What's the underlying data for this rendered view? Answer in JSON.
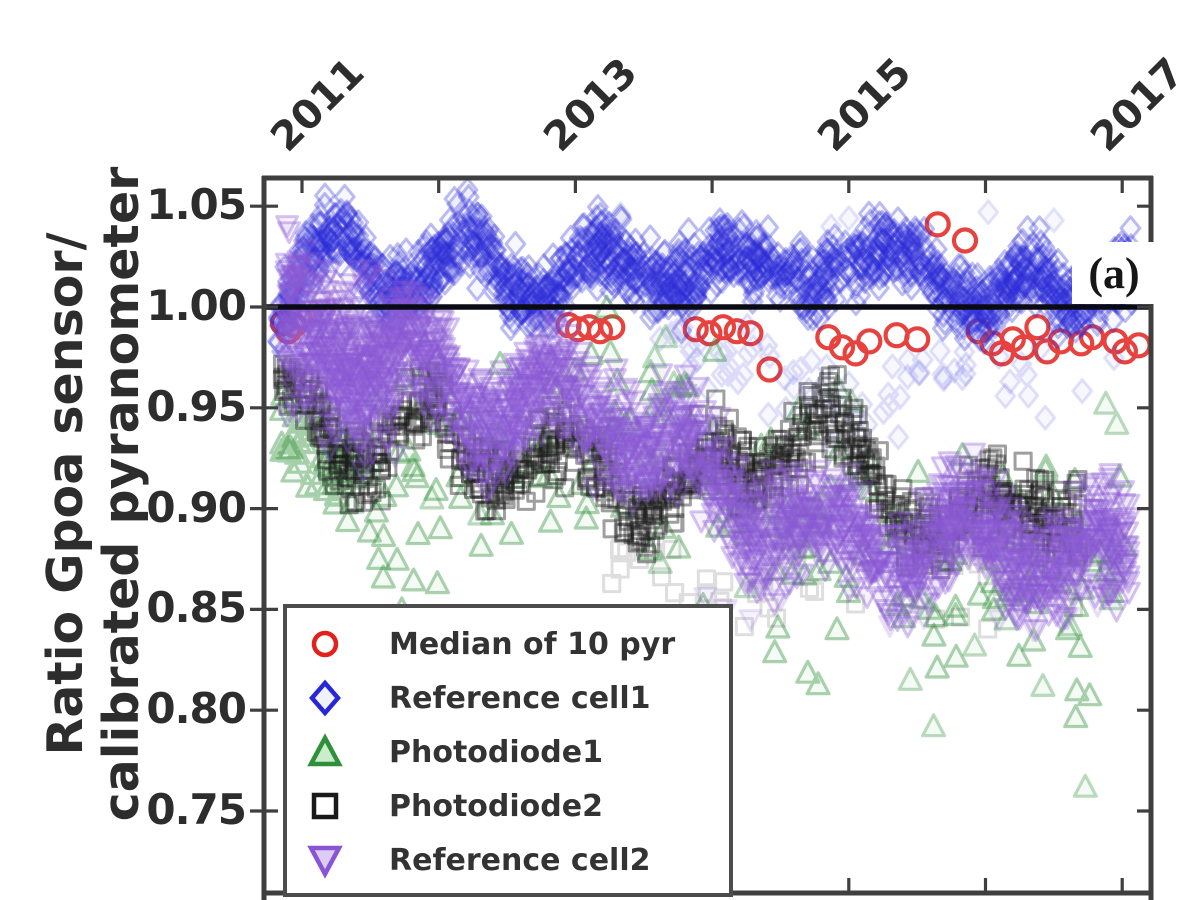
{
  "figure": {
    "background": "#ffffff"
  },
  "chart_data": {
    "type": "scatter",
    "title": "",
    "xlabel": "",
    "ylabel_lines": [
      "Ratio Gpoa sensor/",
      "calibrated pyranometer"
    ],
    "x_axis_position": "top",
    "grid": false,
    "xlim": [
      2010.71,
      2017.23
    ],
    "ylim": [
      0.708,
      1.063
    ],
    "xticks": {
      "major": [
        2011,
        2013,
        2015,
        2017
      ],
      "labels": [
        "2011",
        "2013",
        "2015",
        "2017"
      ],
      "minor": [
        2011,
        2012,
        2013,
        2014,
        2015,
        2016,
        2017
      ]
    },
    "yticks": {
      "values": [
        1.05,
        1.0,
        0.95,
        0.9,
        0.85,
        0.8,
        0.75
      ],
      "labels": [
        "1.05",
        "1.00",
        "0.95",
        "0.90",
        "0.85",
        "0.80",
        "0.75"
      ]
    },
    "reference_line": {
      "y": 1.0,
      "color": "#0a0a14"
    },
    "annotation": {
      "text": "(a)"
    },
    "axis_color": "#3f3f3f",
    "series": [
      {
        "name": "Median of 10 pyr",
        "marker": "circle",
        "color": "#e3211c",
        "alpha": 0.85,
        "size": 11,
        "sw": 4.2,
        "fill": "none",
        "fill_alpha": 0,
        "legend_fill": "#ffffff",
        "components": [
          {
            "type": "pts",
            "alphaScale": 1,
            "pts": [
              [
                2010.86,
                0.992
              ],
              [
                2010.9,
                0.988
              ],
              [
                2010.94,
                0.991
              ],
              [
                2010.98,
                0.995
              ],
              [
                2012.95,
                0.991
              ],
              [
                2013.02,
                0.989
              ],
              [
                2013.1,
                0.99
              ],
              [
                2013.18,
                0.988
              ],
              [
                2013.27,
                0.99
              ],
              [
                2013.88,
                0.989
              ],
              [
                2013.98,
                0.987
              ],
              [
                2014.08,
                0.99
              ],
              [
                2014.18,
                0.988
              ],
              [
                2014.28,
                0.987
              ],
              [
                2014.42,
                0.969
              ],
              [
                2014.85,
                0.985
              ],
              [
                2014.95,
                0.98
              ],
              [
                2015.05,
                0.977
              ],
              [
                2015.15,
                0.983
              ],
              [
                2015.35,
                0.986
              ],
              [
                2015.5,
                0.984
              ],
              [
                2015.65,
                1.041
              ],
              [
                2015.85,
                1.033
              ],
              [
                2015.95,
                0.988
              ],
              [
                2016.05,
                0.982
              ],
              [
                2016.12,
                0.977
              ],
              [
                2016.2,
                0.984
              ],
              [
                2016.28,
                0.98
              ],
              [
                2016.38,
                0.99
              ],
              [
                2016.45,
                0.978
              ],
              [
                2016.55,
                0.983
              ],
              [
                2016.7,
                0.982
              ],
              [
                2016.78,
                0.985
              ],
              [
                2016.95,
                0.983
              ],
              [
                2017.02,
                0.978
              ],
              [
                2017.12,
                0.981
              ]
            ]
          }
        ]
      },
      {
        "name": "Reference cell1",
        "marker": "diamond",
        "color": "#2727d8",
        "alpha": 0.3,
        "size": 11.5,
        "sw": 3,
        "fill": "#6666ee",
        "fill_alpha": 0.05,
        "legend_fill": "#f0f2ff",
        "components": [
          {
            "type": "band",
            "seed": 11,
            "n": 1500,
            "x0": 2010.82,
            "x1": 2017.08,
            "sigma": 0.0085,
            "seasonal": [
              0.009,
              0.0
            ],
            "trend": [
              [
                2010.85,
                1.005
              ],
              [
                2011.0,
                1.02
              ],
              [
                2011.3,
                1.03
              ],
              [
                2011.6,
                1.013
              ],
              [
                2011.9,
                1.02
              ],
              [
                2012.2,
                1.028
              ],
              [
                2012.5,
                1.01
              ],
              [
                2012.8,
                1.015
              ],
              [
                2013.1,
                1.025
              ],
              [
                2013.4,
                1.013
              ],
              [
                2013.7,
                1.02
              ],
              [
                2014.0,
                1.025
              ],
              [
                2014.3,
                1.012
              ],
              [
                2014.6,
                1.02
              ],
              [
                2014.9,
                1.025
              ],
              [
                2015.2,
                1.015
              ],
              [
                2015.5,
                1.028
              ],
              [
                2015.8,
                1.01
              ],
              [
                2016.0,
                0.998
              ],
              [
                2016.2,
                1.005
              ],
              [
                2016.4,
                1.015
              ],
              [
                2016.6,
                1.005
              ],
              [
                2016.8,
                1.02
              ],
              [
                2017.05,
                1.015
              ]
            ]
          },
          {
            "type": "band",
            "seed": 12,
            "n": 70,
            "x0": 2013.6,
            "x1": 2017.05,
            "sigma": 0.012,
            "seasonal": [
              0,
              0
            ],
            "alphaScale": 0.45,
            "trend": [
              [
                2013.6,
                0.988
              ],
              [
                2014.2,
                0.972
              ],
              [
                2014.8,
                0.962
              ],
              [
                2015.3,
                0.958
              ],
              [
                2015.8,
                0.968
              ],
              [
                2016.3,
                0.958
              ],
              [
                2016.8,
                0.957
              ],
              [
                2017.05,
                0.962
              ]
            ]
          },
          {
            "type": "pts",
            "alphaScale": 0.4,
            "pts": [
              [
                2013.33,
                1.046
              ],
              [
                2014.87,
                1.04
              ],
              [
                2015.0,
                1.044
              ],
              [
                2016.02,
                1.047
              ],
              [
                2016.5,
                1.043
              ],
              [
                2014.6,
                0.96
              ],
              [
                2014.9,
                0.953
              ]
            ]
          }
        ]
      },
      {
        "name": "Photodiode1",
        "marker": "triangle-up",
        "color": "#2f8f3a",
        "alpha": 0.4,
        "size": 11,
        "sw": 3.2,
        "fill": "#8fd88f",
        "fill_alpha": 0.1,
        "legend_fill": "#c9eec9",
        "components": [
          {
            "type": "band",
            "seed": 22,
            "n": 70,
            "x0": 2010.85,
            "x1": 2011.5,
            "sigma": 0.013,
            "seasonal": [
              0,
              0
            ],
            "trend": [
              [
                2010.85,
                0.938
              ],
              [
                2011.5,
                0.922
              ]
            ]
          },
          {
            "type": "band",
            "seed": 23,
            "n": 200,
            "x0": 2011.5,
            "x1": 2017.02,
            "sigma": 0.03,
            "seasonal": [
              0.012,
              0.1
            ],
            "trend": [
              [
                2011.5,
                0.92
              ],
              [
                2012.0,
                0.912
              ],
              [
                2012.5,
                0.915
              ],
              [
                2013.0,
                0.922
              ],
              [
                2013.5,
                0.935
              ],
              [
                2013.8,
                0.93
              ],
              [
                2014.2,
                0.9
              ],
              [
                2014.6,
                0.893
              ],
              [
                2015.0,
                0.898
              ],
              [
                2015.4,
                0.885
              ],
              [
                2015.8,
                0.878
              ],
              [
                2016.2,
                0.872
              ],
              [
                2016.6,
                0.868
              ],
              [
                2017.0,
                0.88
              ]
            ]
          },
          {
            "type": "pts",
            "alphaScale": 0.8,
            "pts": [
              [
                2015.62,
                0.792
              ],
              [
                2016.42,
                0.812
              ],
              [
                2016.73,
                0.762
              ],
              [
                2015.92,
                0.832
              ],
              [
                2016.15,
                0.845
              ],
              [
                2013.62,
                0.873
              ],
              [
                2014.25,
                0.861
              ],
              [
                2016.62,
                0.842
              ],
              [
                2016.92,
                0.855
              ],
              [
                2015.45,
                0.815
              ],
              [
                2013.58,
                0.975
              ],
              [
                2013.66,
                0.985
              ],
              [
                2013.72,
                0.962
              ],
              [
                2014.92,
                0.96
              ],
              [
                2015.02,
                0.953
              ],
              [
                2016.88,
                0.952
              ],
              [
                2016.96,
                0.942
              ],
              [
                2011.95,
                0.905
              ],
              [
                2012.3,
                0.897
              ]
            ]
          }
        ]
      },
      {
        "name": "Photodiode2",
        "marker": "square",
        "color": "#1a1a1a",
        "alpha": 0.42,
        "size": 9.5,
        "sw": 3,
        "fill": "none",
        "fill_alpha": 0,
        "legend_fill": "#ffffff",
        "components": [
          {
            "type": "band",
            "seed": 33,
            "n": 820,
            "x0": 2010.85,
            "x1": 2016.68,
            "sigma": 0.0095,
            "seasonal": [
              0.006,
              0.3
            ],
            "trend": [
              [
                2010.85,
                0.96
              ],
              [
                2011.0,
                0.955
              ],
              [
                2011.2,
                0.935
              ],
              [
                2011.45,
                0.92
              ],
              [
                2011.7,
                0.94
              ],
              [
                2011.95,
                0.95
              ],
              [
                2012.2,
                0.925
              ],
              [
                2012.45,
                0.92
              ],
              [
                2012.7,
                0.93
              ],
              [
                2012.95,
                0.925
              ],
              [
                2013.2,
                0.92
              ],
              [
                2013.5,
                0.9
              ],
              [
                2013.75,
                0.91
              ],
              [
                2014.0,
                0.925
              ],
              [
                2014.3,
                0.915
              ],
              [
                2014.6,
                0.935
              ],
              [
                2014.85,
                0.945
              ],
              [
                2015.0,
                0.93
              ],
              [
                2015.2,
                0.91
              ],
              [
                2015.45,
                0.895
              ],
              [
                2015.7,
                0.885
              ],
              [
                2015.95,
                0.9
              ],
              [
                2016.2,
                0.905
              ],
              [
                2016.45,
                0.9
              ],
              [
                2016.68,
                0.895
              ]
            ]
          },
          {
            "type": "band",
            "seed": 34,
            "n": 55,
            "x0": 2013.2,
            "x1": 2016.9,
            "sigma": 0.012,
            "seasonal": [
              0,
              0
            ],
            "alphaScale": 0.35,
            "trend": [
              [
                2013.2,
                0.885
              ],
              [
                2013.9,
                0.862
              ],
              [
                2014.4,
                0.87
              ],
              [
                2015.2,
                0.855
              ],
              [
                2016.0,
                0.862
              ],
              [
                2016.9,
                0.868
              ]
            ]
          }
        ]
      },
      {
        "name": "Reference cell2",
        "marker": "triangle-down",
        "color": "#8856d4",
        "alpha": 0.34,
        "size": 10.5,
        "sw": 3,
        "fill": "#a97fe0",
        "fill_alpha": 0.1,
        "legend_fill": "#ddccf5",
        "components": [
          {
            "type": "band",
            "seed": 44,
            "n": 1750,
            "x0": 2010.88,
            "x1": 2017.05,
            "sigma": 0.013,
            "seasonal": [
              0.01,
              0.45
            ],
            "trend": [
              [
                2010.88,
                1.0
              ],
              [
                2011.05,
                0.995
              ],
              [
                2011.25,
                0.98
              ],
              [
                2011.5,
                0.965
              ],
              [
                2011.75,
                0.975
              ],
              [
                2012.0,
                0.97
              ],
              [
                2012.25,
                0.955
              ],
              [
                2012.5,
                0.945
              ],
              [
                2012.75,
                0.955
              ],
              [
                2013.0,
                0.955
              ],
              [
                2013.25,
                0.945
              ],
              [
                2013.5,
                0.93
              ],
              [
                2013.75,
                0.925
              ],
              [
                2014.0,
                0.92
              ],
              [
                2014.25,
                0.9
              ],
              [
                2014.5,
                0.89
              ],
              [
                2014.75,
                0.885
              ],
              [
                2015.0,
                0.885
              ],
              [
                2015.25,
                0.88
              ],
              [
                2015.5,
                0.875
              ],
              [
                2015.75,
                0.885
              ],
              [
                2016.0,
                0.89
              ],
              [
                2016.25,
                0.885
              ],
              [
                2016.5,
                0.87
              ],
              [
                2016.75,
                0.875
              ],
              [
                2017.0,
                0.88
              ]
            ]
          },
          {
            "type": "band",
            "seed": 45,
            "n": 220,
            "x0": 2010.88,
            "x1": 2011.7,
            "sigma": 0.02,
            "seasonal": [
              0,
              0
            ],
            "trend": [
              [
                2010.88,
                0.985
              ],
              [
                2011.7,
                0.965
              ]
            ]
          },
          {
            "type": "pts",
            "alphaScale": 0.5,
            "pts": [
              [
                2013.95,
                0.856
              ],
              [
                2014.1,
                0.85
              ],
              [
                2014.28,
                0.845
              ],
              [
                2015.3,
                0.842
              ],
              [
                2015.55,
                0.846
              ],
              [
                2016.1,
                0.845
              ],
              [
                2016.35,
                0.84
              ],
              [
                2016.6,
                0.846
              ],
              [
                2016.82,
                0.852
              ],
              [
                2014.5,
                0.855
              ],
              [
                2016.95,
                0.86
              ]
            ]
          }
        ]
      }
    ]
  },
  "legend": {
    "items": [
      {
        "label": "Median of 10 pyr"
      },
      {
        "label": "Reference cell1"
      },
      {
        "label": "Photodiode1"
      },
      {
        "label": "Photodiode2"
      },
      {
        "label": "Reference cell2"
      }
    ]
  }
}
